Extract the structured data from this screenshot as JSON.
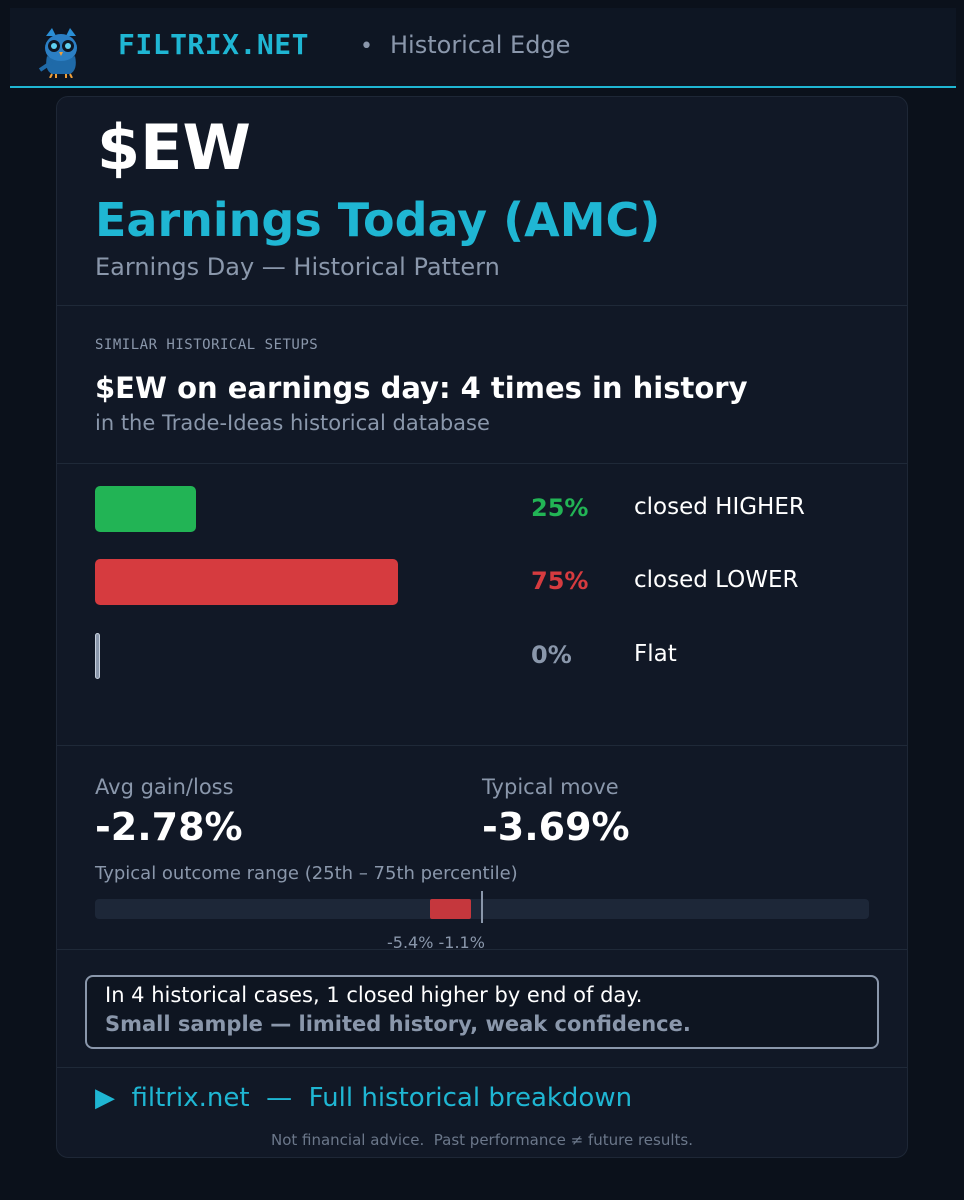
{
  "header": {
    "brand": "FILTRIX.NET",
    "separator": "•",
    "subtitle": "Historical Edge",
    "logo_icon": "owl-icon"
  },
  "hero": {
    "ticker": "$EW",
    "headline": "Earnings Today (AMC)",
    "subhead": "Earnings Day — Historical Pattern"
  },
  "setup": {
    "section_label": "SIMILAR HISTORICAL SETUPS",
    "title": "$EW on earnings day: 4 times in history",
    "subtitle": "in the Trade-Ideas historical database"
  },
  "outcomes": [
    {
      "pct_label": "25%",
      "label": "closed HIGHER",
      "fraction": 0.25,
      "color": "#22b455"
    },
    {
      "pct_label": "75%",
      "label": "closed LOWER",
      "fraction": 0.75,
      "color": "#d63b3f"
    },
    {
      "pct_label": "0%",
      "label": "Flat",
      "fraction": 0.0,
      "color": "#8a97ab"
    }
  ],
  "stats": {
    "avg_label": "Avg gain/loss",
    "avg_value": "-2.78%",
    "typical_label": "Typical move",
    "typical_value": "-3.69%"
  },
  "range": {
    "label": "Typical outcome range  (25th – 75th percentile)",
    "low_label": "-5.4%",
    "high_label": "-1.1%",
    "low": -5.4,
    "high": -1.1,
    "axis_min": -40,
    "axis_max": 40
  },
  "note": {
    "line1": "In 4 historical cases, 1 closed higher by end of day.",
    "line2": "Small sample — limited history, weak confidence."
  },
  "cta": {
    "arrow": "▶",
    "text": "filtrix.net  —  Full historical breakdown"
  },
  "disclaimer": "Not financial advice.  Past performance ≠ future results.",
  "colors": {
    "accent": "#1fb6d3",
    "positive": "#22b455",
    "negative": "#d63b3f",
    "muted": "#8a97ab"
  }
}
